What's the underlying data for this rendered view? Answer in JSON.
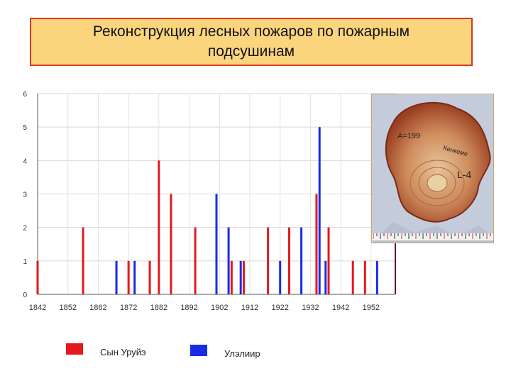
{
  "title": "Реконструкция лесных пожаров по пожарным подсушинам",
  "photo": {
    "labels": [
      "A=199",
      "Кенкеме",
      "L-4"
    ]
  },
  "legend": [
    {
      "label": "Сын Уруйэ",
      "color": "#e3191c"
    },
    {
      "label": "Улэлиир",
      "color": "#1a2be5"
    }
  ],
  "chart_data": {
    "type": "bar",
    "xlim": [
      1842,
      1960
    ],
    "ylim": [
      0,
      6
    ],
    "x_ticks": [
      1842,
      1852,
      1862,
      1872,
      1882,
      1892,
      1902,
      1912,
      1922,
      1932,
      1942,
      1952
    ],
    "y_ticks": [
      0,
      1,
      2,
      3,
      4,
      5,
      6
    ],
    "grid": true,
    "legend_position": "bottom",
    "series": [
      {
        "name": "Сын Уруйэ",
        "color": "#e3191c",
        "x": [
          1842,
          1857,
          1872,
          1879,
          1882,
          1886,
          1894,
          1906,
          1910,
          1918,
          1925,
          1934,
          1938,
          1946,
          1950
        ],
        "y": [
          1,
          2,
          1,
          1,
          4,
          3,
          2,
          1,
          1,
          2,
          2,
          3,
          2,
          1,
          1
        ]
      },
      {
        "name": "Улэлиир",
        "color": "#1a2be5",
        "x": [
          1868,
          1874,
          1901,
          1905,
          1909,
          1922,
          1929,
          1935,
          1937,
          1954
        ],
        "y": [
          1,
          1,
          3,
          2,
          1,
          1,
          2,
          5,
          1,
          1
        ]
      }
    ]
  }
}
